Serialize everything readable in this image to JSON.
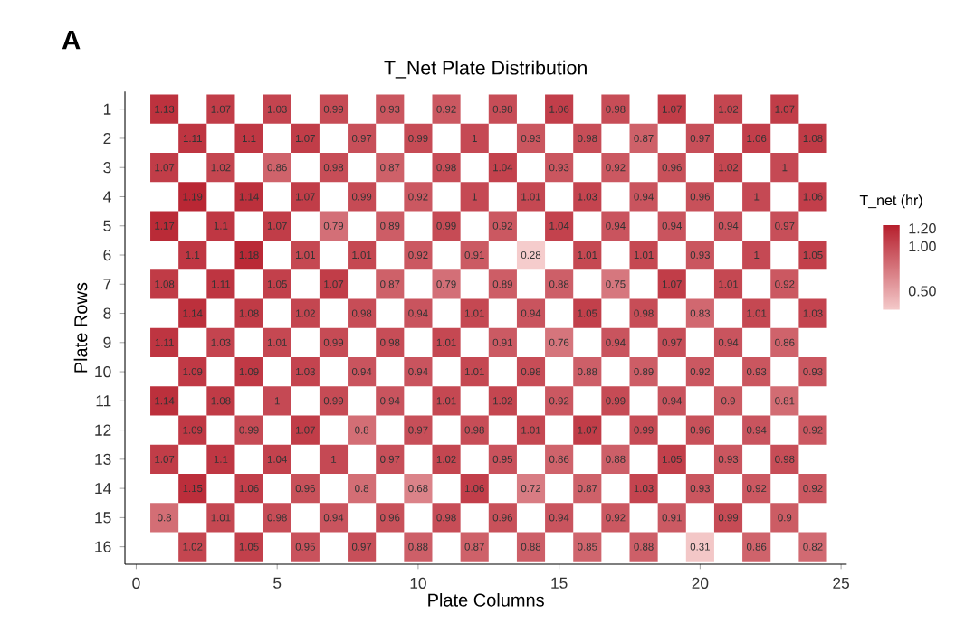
{
  "chart_data": {
    "type": "heatmap",
    "title": "T_Net Plate Distribution",
    "xlabel": "Plate Columns",
    "ylabel": "Plate Rows",
    "clabel": "T_net (hr)",
    "annotations": [
      "A"
    ],
    "x": [
      1,
      2,
      3,
      4,
      5,
      6,
      7,
      8,
      9,
      10,
      11,
      12,
      13,
      14,
      15,
      16,
      17,
      18,
      19,
      20,
      21,
      22,
      23,
      24
    ],
    "xlim": [
      -0.4,
      25.2
    ],
    "xticks": [
      0,
      5,
      10,
      15,
      20,
      25
    ],
    "y_categories": [
      "1",
      "2",
      "3",
      "4",
      "5",
      "6",
      "7",
      "8",
      "9",
      "10",
      "11",
      "12",
      "13",
      "14",
      "15",
      "16"
    ],
    "cells": [
      [
        1.13,
        null,
        1.07,
        null,
        1.03,
        null,
        0.99,
        null,
        0.93,
        null,
        0.92,
        null,
        0.98,
        null,
        1.06,
        null,
        0.98,
        null,
        1.07,
        null,
        1.02,
        null,
        1.07,
        null
      ],
      [
        null,
        1.11,
        null,
        1.1,
        null,
        1.07,
        null,
        0.97,
        null,
        0.99,
        null,
        1,
        null,
        0.93,
        null,
        0.98,
        null,
        0.87,
        null,
        0.97,
        null,
        1.06,
        null,
        1.08
      ],
      [
        1.07,
        null,
        1.02,
        null,
        0.86,
        null,
        0.98,
        null,
        0.87,
        null,
        0.98,
        null,
        1.04,
        null,
        0.93,
        null,
        0.92,
        null,
        0.96,
        null,
        1.02,
        null,
        1,
        null
      ],
      [
        null,
        1.19,
        null,
        1.14,
        null,
        1.07,
        null,
        0.99,
        null,
        0.92,
        null,
        1,
        null,
        1.01,
        null,
        1.03,
        null,
        0.94,
        null,
        0.96,
        null,
        1,
        null,
        1.06
      ],
      [
        1.17,
        null,
        1.1,
        null,
        1.07,
        null,
        0.79,
        null,
        0.89,
        null,
        0.99,
        null,
        0.92,
        null,
        1.04,
        null,
        0.94,
        null,
        0.94,
        null,
        0.94,
        null,
        0.97,
        null
      ],
      [
        null,
        1.1,
        null,
        1.18,
        null,
        1.01,
        null,
        1.01,
        null,
        0.92,
        null,
        0.91,
        null,
        0.28,
        null,
        1.01,
        null,
        1.01,
        null,
        0.93,
        null,
        1,
        null,
        1.05
      ],
      [
        1.08,
        null,
        1.11,
        null,
        1.05,
        null,
        1.07,
        null,
        0.87,
        null,
        0.79,
        null,
        0.89,
        null,
        0.88,
        null,
        0.75,
        null,
        1.07,
        null,
        1.01,
        null,
        0.92,
        null
      ],
      [
        null,
        1.14,
        null,
        1.08,
        null,
        1.02,
        null,
        0.98,
        null,
        0.94,
        null,
        1.01,
        null,
        0.94,
        null,
        1.05,
        null,
        0.98,
        null,
        0.83,
        null,
        1.01,
        null,
        1.03
      ],
      [
        1.11,
        null,
        1.03,
        null,
        1.01,
        null,
        0.99,
        null,
        0.98,
        null,
        1.01,
        null,
        0.91,
        null,
        0.76,
        null,
        0.94,
        null,
        0.97,
        null,
        0.94,
        null,
        0.86,
        null
      ],
      [
        null,
        1.09,
        null,
        1.09,
        null,
        1.03,
        null,
        0.94,
        null,
        0.94,
        null,
        1.01,
        null,
        0.98,
        null,
        0.88,
        null,
        0.89,
        null,
        0.92,
        null,
        0.93,
        null,
        0.93
      ],
      [
        1.14,
        null,
        1.08,
        null,
        1,
        null,
        0.99,
        null,
        0.94,
        null,
        1.01,
        null,
        1.02,
        null,
        0.92,
        null,
        0.99,
        null,
        0.94,
        null,
        0.9,
        null,
        0.81,
        null
      ],
      [
        null,
        1.09,
        null,
        0.99,
        null,
        1.07,
        null,
        0.8,
        null,
        0.97,
        null,
        0.98,
        null,
        1.01,
        null,
        1.07,
        null,
        0.99,
        null,
        0.96,
        null,
        0.94,
        null,
        0.92
      ],
      [
        1.07,
        null,
        1.1,
        null,
        1.04,
        null,
        1,
        null,
        0.97,
        null,
        1.02,
        null,
        0.95,
        null,
        0.86,
        null,
        0.88,
        null,
        1.05,
        null,
        0.93,
        null,
        0.98,
        null
      ],
      [
        null,
        1.15,
        null,
        1.06,
        null,
        0.96,
        null,
        0.8,
        null,
        0.68,
        null,
        1.06,
        null,
        0.72,
        null,
        0.87,
        null,
        1.03,
        null,
        0.93,
        null,
        0.92,
        null,
        0.92
      ],
      [
        0.8,
        null,
        1.01,
        null,
        0.98,
        null,
        0.94,
        null,
        0.96,
        null,
        0.98,
        null,
        0.96,
        null,
        0.94,
        null,
        0.92,
        null,
        0.91,
        null,
        0.99,
        null,
        0.9,
        null
      ],
      [
        null,
        1.02,
        null,
        1.05,
        null,
        0.95,
        null,
        0.97,
        null,
        0.88,
        null,
        0.87,
        null,
        0.88,
        null,
        0.85,
        null,
        0.88,
        null,
        0.31,
        null,
        0.86,
        null,
        0.82
      ]
    ],
    "data_labels": true,
    "clim": [
      0.28,
      1.25
    ],
    "cticks": [
      {
        "value": 0.5,
        "label": "0.50"
      },
      {
        "value": 1.0,
        "label": "1.00"
      },
      {
        "value": 1.2,
        "label": "1.20"
      }
    ]
  }
}
